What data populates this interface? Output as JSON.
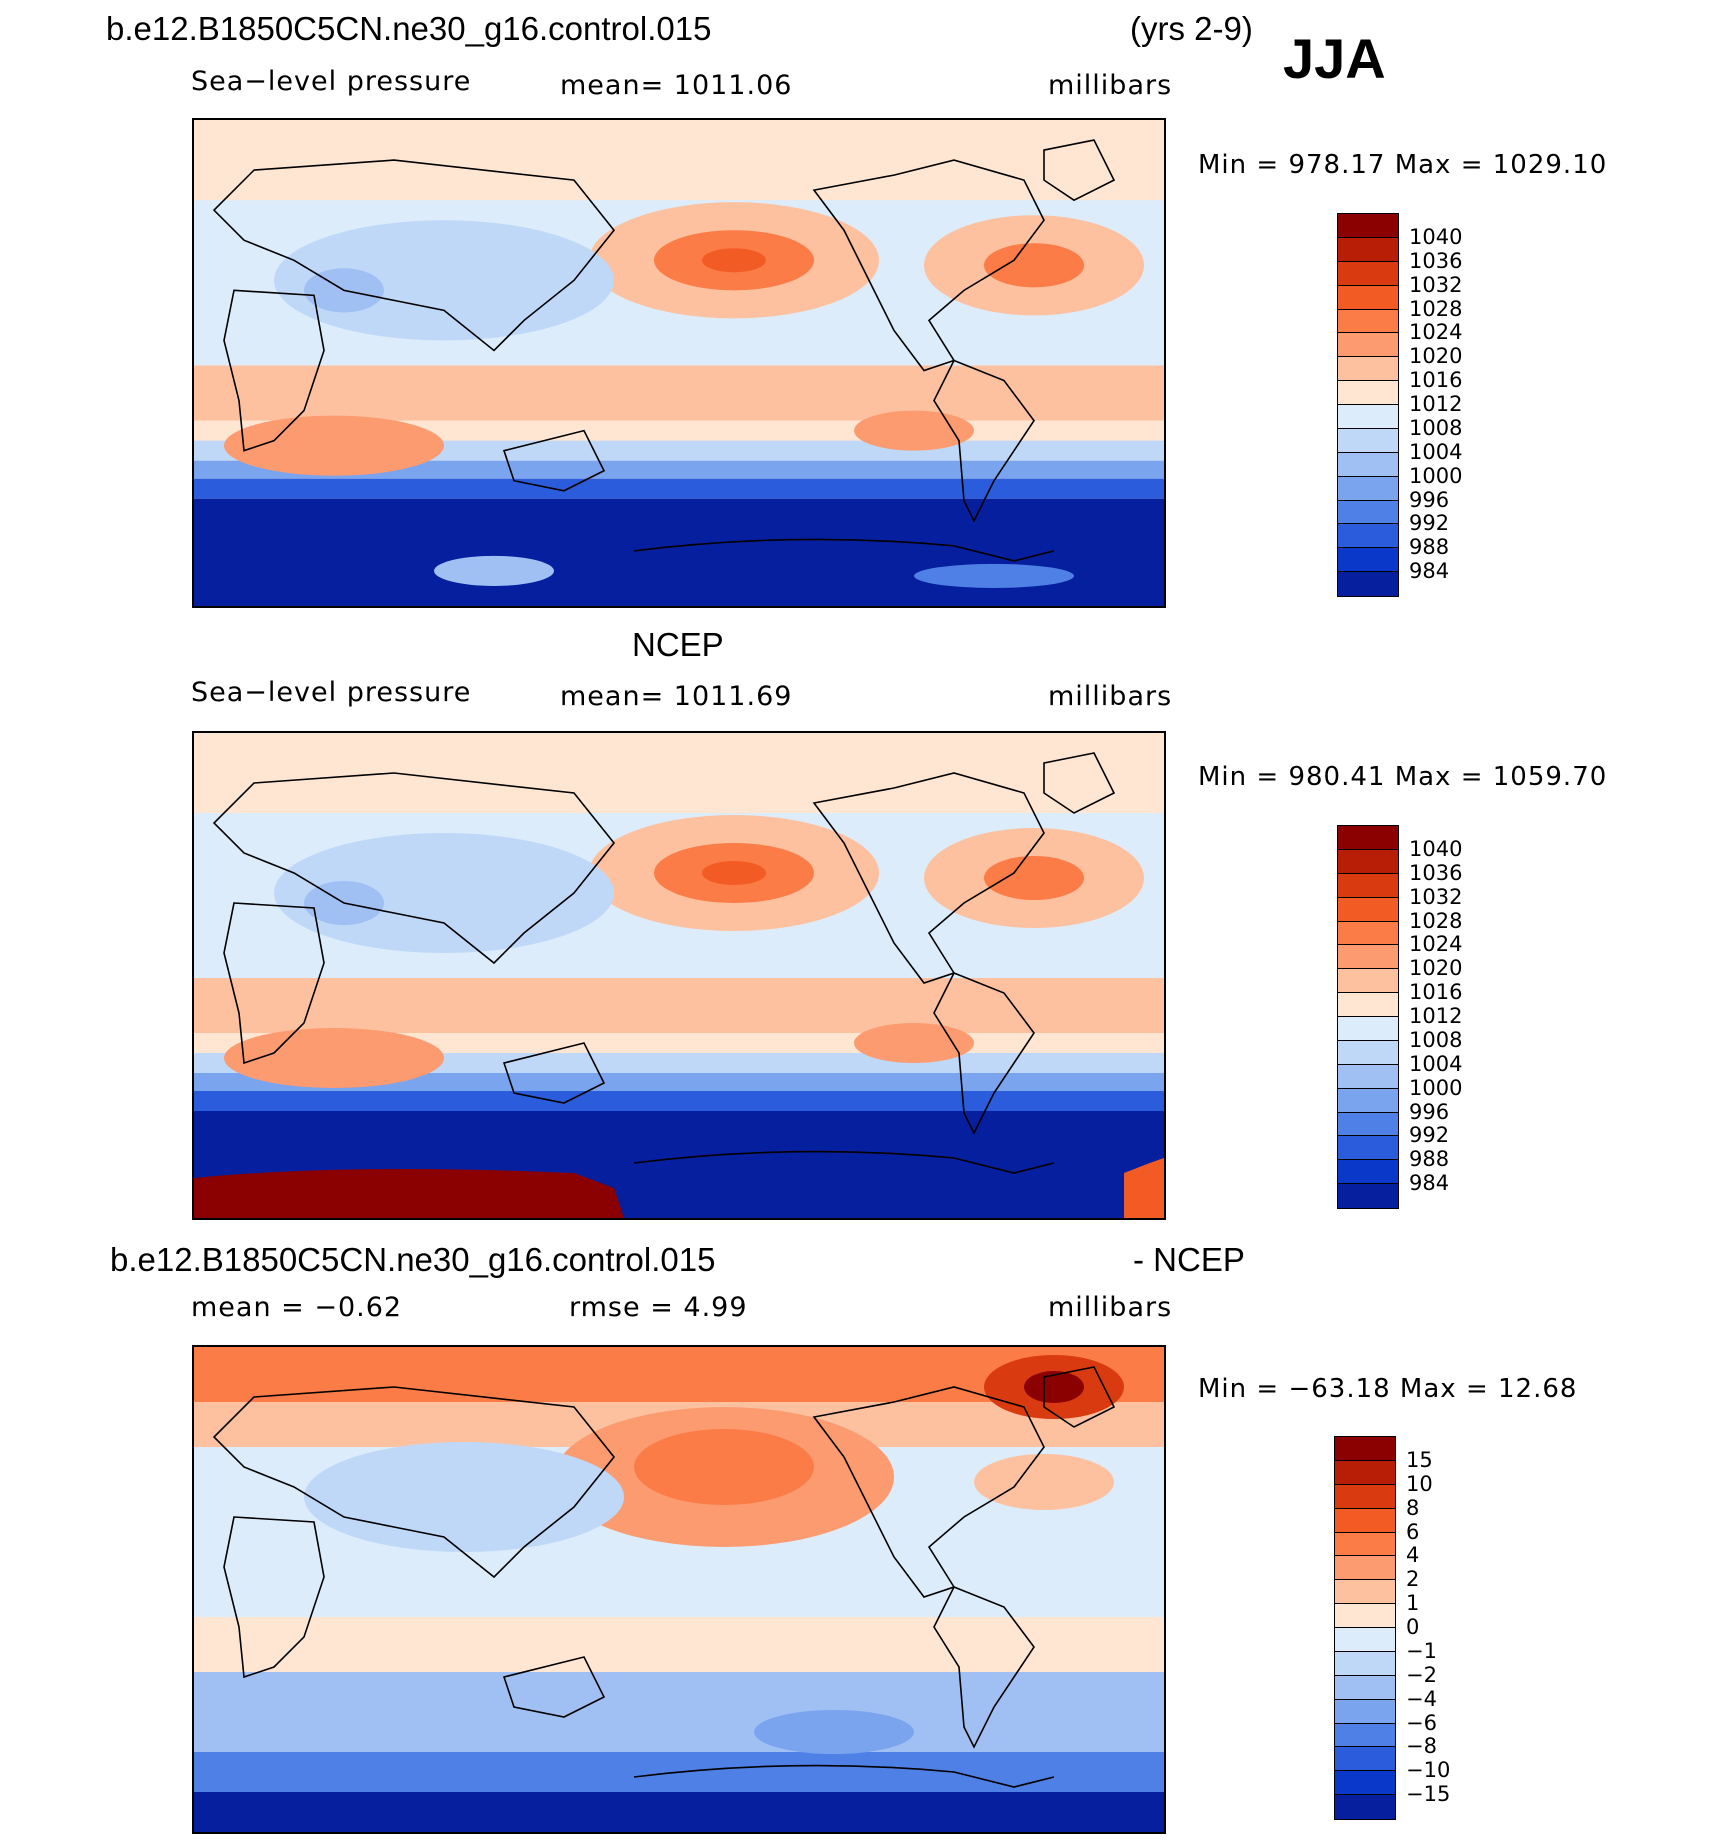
{
  "header": {
    "case_name": "b.e12.B1850C5CN.ne30_g16.control.015",
    "years": "(yrs 2-9)",
    "season": "JJA"
  },
  "panels": [
    {
      "title": "",
      "variable": "Sea−level pressure",
      "mean_text": "mean=  1011.06",
      "units": "millibars",
      "minmax_text": "Min  =  978.17  Max  =  1029.10",
      "colorbar": {
        "labels": [
          "1040",
          "1036",
          "1032",
          "1028",
          "1024",
          "1020",
          "1016",
          "1012",
          "1008",
          "1004",
          "1000",
          "996",
          "992",
          "988",
          "984"
        ],
        "colors": [
          "#8b0000",
          "#b81e06",
          "#da3a10",
          "#f25c24",
          "#fb7c47",
          "#fc9b70",
          "#fdc1a0",
          "#fee6d2",
          "#dcecfb",
          "#c0d8f8",
          "#a0c0f4",
          "#7aa4ee",
          "#4f80e6",
          "#2a5cdb",
          "#0a38c8",
          "#051f9e"
        ]
      }
    },
    {
      "title": "NCEP",
      "variable": "Sea−level pressure",
      "mean_text": "mean=  1011.69",
      "units": "millibars",
      "minmax_text": "Min  =  980.41  Max  =  1059.70",
      "colorbar": {
        "labels": [
          "1040",
          "1036",
          "1032",
          "1028",
          "1024",
          "1020",
          "1016",
          "1012",
          "1008",
          "1004",
          "1000",
          "996",
          "992",
          "988",
          "984"
        ],
        "colors": [
          "#8b0000",
          "#b81e06",
          "#da3a10",
          "#f25c24",
          "#fb7c47",
          "#fc9b70",
          "#fdc1a0",
          "#fee6d2",
          "#dcecfb",
          "#c0d8f8",
          "#a0c0f4",
          "#7aa4ee",
          "#4f80e6",
          "#2a5cdb",
          "#0a38c8",
          "#051f9e"
        ]
      }
    },
    {
      "title_left": "b.e12.B1850C5CN.ne30_g16.control.015",
      "title_right": "- NCEP",
      "mean_text": "mean =    −0.62",
      "rmse_text": "rmse =     4.99",
      "units": "millibars",
      "minmax_text": "Min  =  −63.18  Max  =    12.68",
      "colorbar": {
        "labels": [
          "15",
          "10",
          "8",
          "6",
          "4",
          "2",
          "1",
          "0",
          "−1",
          "−2",
          "−4",
          "−6",
          "−8",
          "−10",
          "−15"
        ],
        "colors": [
          "#8b0000",
          "#b81e06",
          "#da3a10",
          "#f25c24",
          "#fb7c47",
          "#fc9b70",
          "#fdc1a0",
          "#fee6d2",
          "#dcecfb",
          "#c0d8f8",
          "#a0c0f4",
          "#7aa4ee",
          "#4f80e6",
          "#2a5cdb",
          "#0a38c8",
          "#051f9e"
        ]
      }
    }
  ]
}
